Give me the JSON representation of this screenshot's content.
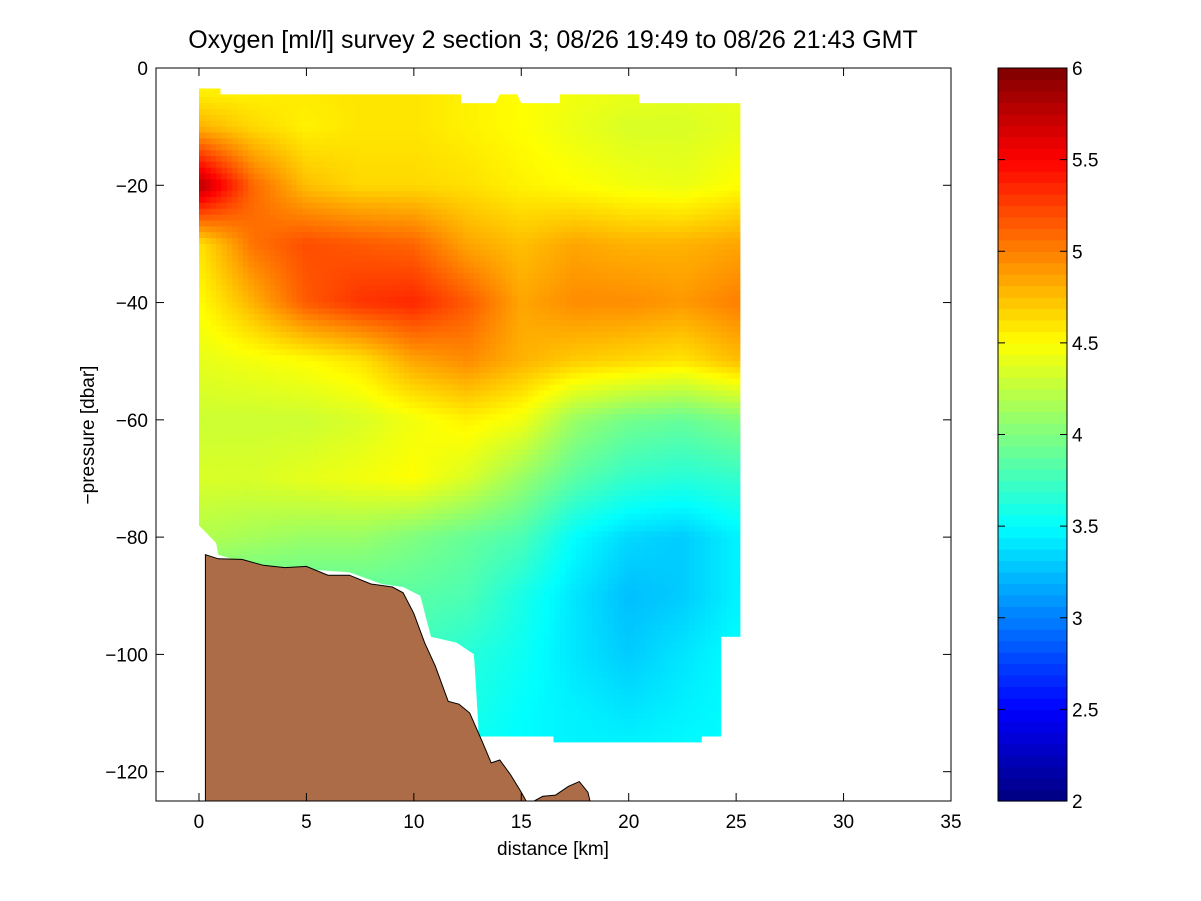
{
  "chart_data": {
    "type": "heatmap",
    "title": "Oxygen [ml/l] survey 2 section 3; 08/26 19:49 to 08/26 21:43 GMT",
    "xlabel": "distance [km]",
    "ylabel": "−pressure [dbar]",
    "xlim": [
      -2,
      35
    ],
    "ylim": [
      -125,
      0
    ],
    "xticks": [
      0,
      5,
      10,
      15,
      20,
      25,
      30,
      35
    ],
    "yticks": [
      0,
      -20,
      -40,
      -60,
      -80,
      -100,
      -120
    ],
    "colorbar": {
      "colormap": "jet",
      "clim": [
        2,
        6
      ],
      "ticks": [
        2,
        2.5,
        3,
        3.5,
        4,
        4.5,
        5,
        5.5,
        6
      ]
    },
    "data_region_top": [
      [
        0,
        -3.5
      ],
      [
        1,
        -3.5
      ],
      [
        1,
        -4.5
      ],
      [
        12.2,
        -4.5
      ],
      [
        12.2,
        -6
      ],
      [
        13.8,
        -6
      ],
      [
        14,
        -4.5
      ],
      [
        14.8,
        -4.5
      ],
      [
        15,
        -6
      ],
      [
        16.8,
        -6
      ],
      [
        16.8,
        -4.5
      ],
      [
        20.5,
        -4.5
      ],
      [
        20.5,
        -6
      ],
      [
        25.2,
        -6
      ]
    ],
    "data_region_bottom": [
      [
        25.2,
        -97
      ],
      [
        24.3,
        -97
      ],
      [
        24.3,
        -114
      ],
      [
        23.4,
        -114
      ],
      [
        23.4,
        -115
      ],
      [
        16.5,
        -115
      ],
      [
        16.5,
        -114
      ],
      [
        13,
        -114
      ],
      [
        13,
        -112
      ],
      [
        12.8,
        -100
      ],
      [
        12,
        -98
      ],
      [
        10.8,
        -97
      ],
      [
        10.3,
        -90
      ],
      [
        9.5,
        -88.5
      ],
      [
        8.5,
        -88
      ],
      [
        7,
        -86
      ],
      [
        5,
        -85.5
      ],
      [
        2.5,
        -85
      ],
      [
        1.8,
        -84
      ],
      [
        0.9,
        -83
      ],
      [
        0.8,
        -81
      ],
      [
        0,
        -78
      ]
    ],
    "bathymetry": {
      "label": "seafloor",
      "color": "#ab6c47",
      "profile": [
        [
          0.3,
          -83
        ],
        [
          0.9,
          -83.7
        ],
        [
          2,
          -83.8
        ],
        [
          3,
          -84.8
        ],
        [
          4,
          -85.2
        ],
        [
          5,
          -85
        ],
        [
          6,
          -86.5
        ],
        [
          7,
          -86.5
        ],
        [
          8,
          -88
        ],
        [
          9,
          -88.5
        ],
        [
          9.5,
          -89.5
        ],
        [
          10,
          -93
        ],
        [
          10.5,
          -98
        ],
        [
          11,
          -102
        ],
        [
          11.6,
          -108
        ],
        [
          12.1,
          -108.5
        ],
        [
          12.6,
          -110
        ],
        [
          13.2,
          -115
        ],
        [
          13.6,
          -118.5
        ],
        [
          14,
          -118
        ],
        [
          14.5,
          -120.5
        ],
        [
          15,
          -123.5
        ],
        [
          15.3,
          -125.5
        ],
        [
          15.6,
          -125
        ],
        [
          16,
          -124.2
        ],
        [
          16.6,
          -124
        ],
        [
          17.2,
          -122.5
        ],
        [
          17.7,
          -121.7
        ],
        [
          18.1,
          -123.5
        ],
        [
          18.2,
          -125
        ]
      ]
    },
    "oxygen_field": {
      "units": "ml/l",
      "x_km": [
        0,
        2.5,
        5,
        7.5,
        10,
        12.5,
        15,
        17.5,
        20,
        22.5,
        25
      ],
      "depth_dbar": [
        -4,
        -10,
        -20,
        -30,
        -40,
        -50,
        -60,
        -70,
        -80,
        -90,
        -100,
        -110,
        -115
      ],
      "values": [
        [
          4.55,
          4.55,
          4.58,
          4.6,
          4.6,
          4.55,
          4.5,
          4.45,
          4.42,
          4.4,
          4.42
        ],
        [
          4.8,
          4.65,
          4.55,
          4.6,
          4.6,
          4.55,
          4.5,
          4.42,
          4.35,
          4.35,
          4.4
        ],
        [
          5.8,
          5.1,
          4.75,
          4.65,
          4.65,
          4.62,
          4.55,
          4.5,
          4.45,
          4.42,
          4.5
        ],
        [
          4.6,
          5.05,
          5.2,
          5.15,
          5.1,
          4.85,
          4.75,
          4.85,
          4.8,
          4.8,
          4.85
        ],
        [
          4.5,
          4.8,
          5.15,
          5.3,
          5.35,
          5.15,
          4.85,
          4.95,
          4.95,
          4.9,
          5.0
        ],
        [
          4.4,
          4.45,
          4.5,
          4.6,
          4.85,
          4.95,
          4.8,
          4.7,
          4.65,
          4.6,
          4.75
        ],
        [
          4.3,
          4.3,
          4.3,
          4.35,
          4.45,
          4.55,
          4.45,
          4.1,
          3.95,
          3.9,
          4.0
        ],
        [
          4.35,
          4.35,
          4.4,
          4.45,
          4.5,
          4.35,
          4.1,
          3.85,
          3.7,
          3.65,
          3.7
        ],
        [
          4.2,
          4.15,
          4.1,
          4.1,
          4.0,
          3.9,
          3.8,
          3.5,
          3.35,
          3.3,
          3.45
        ],
        [
          3.85,
          3.85,
          3.85,
          3.85,
          3.85,
          3.8,
          3.6,
          3.4,
          3.25,
          3.3,
          3.45
        ],
        [
          3.75,
          3.75,
          3.75,
          3.75,
          3.75,
          3.65,
          3.55,
          3.4,
          3.3,
          3.4,
          3.5
        ],
        [
          3.7,
          3.7,
          3.7,
          3.7,
          3.7,
          3.6,
          3.5,
          3.45,
          3.4,
          3.45,
          3.5
        ],
        [
          3.7,
          3.7,
          3.7,
          3.7,
          3.7,
          3.55,
          3.5,
          3.45,
          3.45,
          3.48,
          3.5
        ]
      ]
    }
  }
}
